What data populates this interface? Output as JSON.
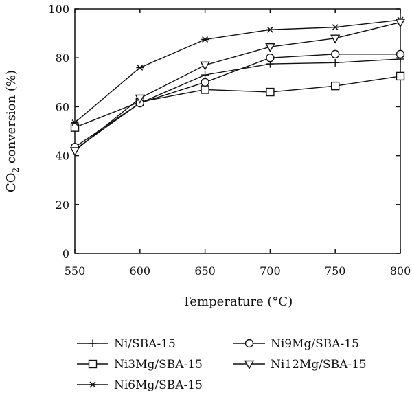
{
  "chart_data": {
    "type": "line",
    "x": [
      550,
      600,
      650,
      700,
      750,
      800
    ],
    "xlim": [
      550,
      800
    ],
    "ylim": [
      0,
      100
    ],
    "xticks": [
      550,
      600,
      650,
      700,
      750,
      800
    ],
    "yticks": [
      0,
      20,
      40,
      60,
      80,
      100
    ],
    "xlabel": "Temperature (°C)",
    "ylabel": {
      "prefix": "CO",
      "sub": "2",
      "suffix": " conversion (%)"
    },
    "grid": false,
    "legend_position": "below",
    "series": [
      {
        "name": "Ni/SBA-15",
        "marker": "plus",
        "values": [
          42.5,
          61.5,
          73,
          77.5,
          78,
          79.5
        ]
      },
      {
        "name": "Ni3Mg/SBA-15",
        "marker": "square",
        "values": [
          51.5,
          62,
          67,
          66,
          68.5,
          72.5
        ]
      },
      {
        "name": "Ni6Mg/SBA-15",
        "marker": "asterisk",
        "values": [
          53.5,
          76,
          87.5,
          91.5,
          92.5,
          95.5
        ]
      },
      {
        "name": "Ni9Mg/SBA-15",
        "marker": "circle",
        "values": [
          43.5,
          61.5,
          70,
          80,
          81.5,
          81.5
        ]
      },
      {
        "name": "Ni12Mg/SBA-15",
        "marker": "triangle-down",
        "values": [
          42,
          63.5,
          77,
          84.5,
          88,
          94.5
        ]
      }
    ],
    "color": "#111111"
  }
}
